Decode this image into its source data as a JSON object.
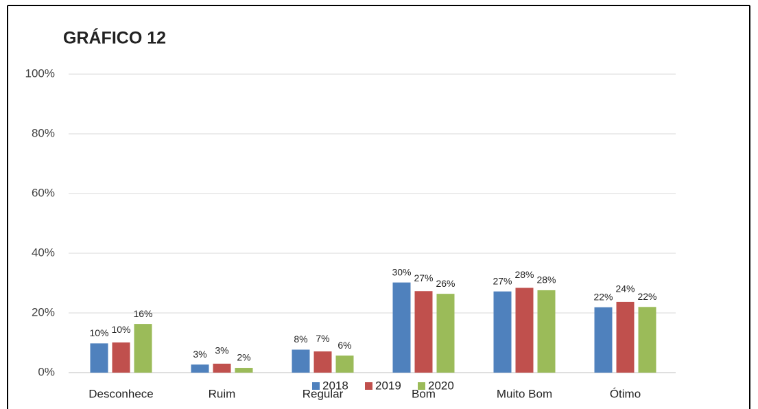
{
  "chart_data": {
    "type": "bar",
    "title": "GRÁFICO 12",
    "categories": [
      "Desconhece",
      "Ruim",
      "Regular",
      "Bom",
      "Muito Bom",
      "Ótimo"
    ],
    "series": [
      {
        "name": "2018",
        "color": "#4f81bd",
        "values": [
          9.8,
          2.7,
          7.7,
          30.2,
          27.2,
          21.9
        ],
        "value_labels": [
          "10%",
          "3%",
          "8%",
          "30%",
          "27%",
          "22%"
        ]
      },
      {
        "name": "2019",
        "color": "#c0504d",
        "values": [
          10.1,
          3.0,
          7.1,
          27.3,
          28.4,
          23.7
        ],
        "value_labels": [
          "10%",
          "3%",
          "7%",
          "27%",
          "28%",
          "24%"
        ]
      },
      {
        "name": "2020",
        "color": "#9bbb59",
        "values": [
          16.3,
          1.6,
          5.7,
          26.4,
          27.6,
          22.0
        ],
        "value_labels": [
          "16%",
          "2%",
          "6%",
          "26%",
          "28%",
          "22%"
        ]
      }
    ],
    "ylim": [
      0,
      100
    ],
    "yticks": [
      {
        "value": 0,
        "label": "0%"
      },
      {
        "value": 20,
        "label": "20%"
      },
      {
        "value": 40,
        "label": "40%"
      },
      {
        "value": 60,
        "label": "60%"
      },
      {
        "value": 80,
        "label": "80%"
      },
      {
        "value": 100,
        "label": "100%"
      }
    ],
    "grid": true,
    "legend": "bottom"
  }
}
